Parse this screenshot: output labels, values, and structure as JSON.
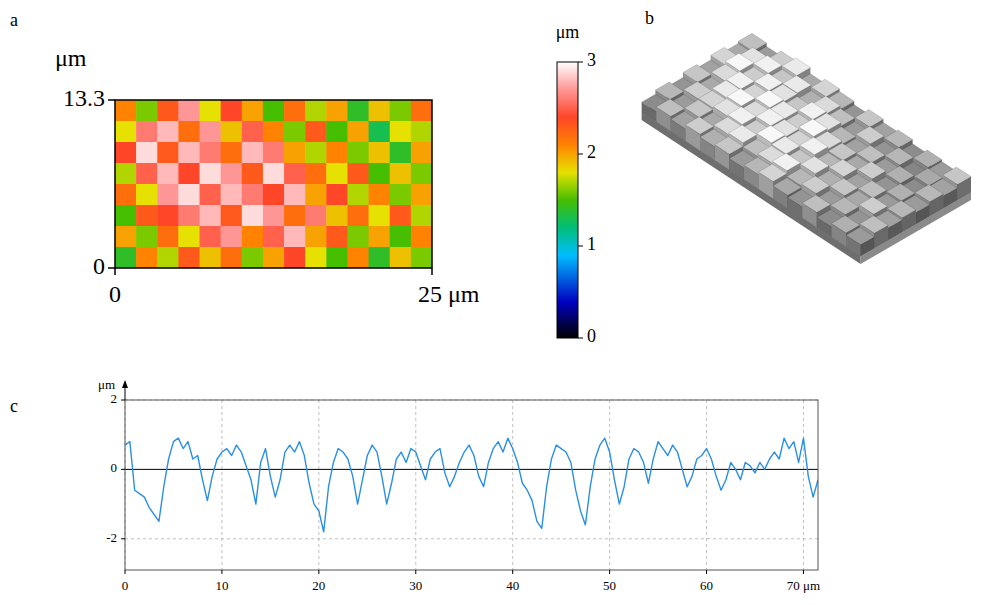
{
  "chart_data": [
    {
      "type": "heatmap",
      "panel_label": "a",
      "y_label": "μm",
      "xlim": [
        0,
        25
      ],
      "ylim": [
        0,
        13.3
      ],
      "xticks": [
        0,
        {
          "value": 25,
          "label": "25 μm"
        }
      ],
      "yticks": [
        0,
        13.3
      ],
      "cells": [
        [
          2.1,
          1.6,
          2.3,
          2.7,
          1.8,
          2.4,
          2.0,
          1.5,
          2.2,
          1.7,
          2.0,
          1.4,
          1.9,
          1.6,
          2.2
        ],
        [
          1.8,
          2.6,
          2.8,
          2.2,
          2.7,
          1.9,
          2.5,
          2.1,
          1.6,
          2.3,
          1.5,
          2.0,
          1.3,
          1.8,
          1.7
        ],
        [
          2.4,
          2.9,
          2.3,
          2.8,
          2.6,
          2.2,
          2.8,
          2.6,
          2.0,
          1.7,
          2.1,
          1.6,
          1.9,
          1.4,
          2.0
        ],
        [
          1.7,
          2.5,
          2.8,
          2.4,
          2.9,
          2.7,
          2.3,
          2.9,
          2.5,
          2.2,
          1.8,
          2.3,
          1.5,
          1.9,
          1.6
        ],
        [
          2.2,
          1.8,
          2.7,
          2.9,
          2.5,
          2.8,
          2.6,
          2.4,
          2.8,
          2.0,
          2.4,
          1.7,
          2.1,
          1.6,
          2.0
        ],
        [
          1.5,
          2.3,
          2.4,
          2.6,
          2.8,
          2.3,
          2.9,
          2.7,
          2.2,
          2.6,
          1.9,
          2.2,
          1.8,
          2.3,
          1.7
        ],
        [
          2.0,
          1.6,
          2.2,
          1.8,
          2.5,
          2.7,
          2.1,
          2.5,
          2.8,
          2.0,
          2.3,
          1.6,
          2.0,
          1.5,
          2.1
        ],
        [
          1.4,
          2.1,
          1.7,
          2.3,
          1.9,
          2.2,
          1.6,
          2.0,
          2.4,
          1.8,
          1.5,
          2.1,
          1.4,
          1.9,
          1.6
        ]
      ],
      "colorbar": {
        "label": "μm",
        "lim": [
          0,
          3
        ],
        "ticks": [
          0,
          1,
          2,
          3
        ]
      }
    },
    {
      "type": "surface",
      "panel_label": "b",
      "tick_labels": false
    },
    {
      "type": "line",
      "panel_label": "c",
      "y_label": "μm",
      "grid": true,
      "xlim": [
        0,
        71.5
      ],
      "ylim": [
        -2.9,
        2
      ],
      "xticks": [
        0,
        10,
        20,
        30,
        40,
        50,
        60,
        {
          "value": 70,
          "label": "70 μm"
        }
      ],
      "yticks": [
        -2,
        0,
        2
      ],
      "x": [
        0,
        0.5,
        1,
        1.5,
        2,
        2.5,
        3,
        3.5,
        4,
        4.5,
        5,
        5.5,
        6,
        6.5,
        7,
        7.5,
        8,
        8.5,
        9,
        9.5,
        10,
        10.5,
        11,
        11.5,
        12,
        12.5,
        13,
        13.5,
        14,
        14.5,
        15,
        15.5,
        16,
        16.5,
        17,
        17.5,
        18,
        18.5,
        19,
        19.5,
        20,
        20.5,
        21,
        21.5,
        22,
        22.5,
        23,
        23.5,
        24,
        24.5,
        25,
        25.5,
        26,
        26.5,
        27,
        27.5,
        28,
        28.5,
        29,
        29.5,
        30,
        30.5,
        31,
        31.5,
        32,
        32.5,
        33,
        33.5,
        34,
        34.5,
        35,
        35.5,
        36,
        36.5,
        37,
        37.5,
        38,
        38.5,
        39,
        39.5,
        40,
        40.5,
        41,
        41.5,
        42,
        42.5,
        43,
        43.5,
        44,
        44.5,
        45,
        45.5,
        46,
        46.5,
        47,
        47.5,
        48,
        48.5,
        49,
        49.5,
        50,
        50.5,
        51,
        51.5,
        52,
        52.5,
        53,
        53.5,
        54,
        54.5,
        55,
        55.5,
        56,
        56.5,
        57,
        57.5,
        58,
        58.5,
        59,
        59.5,
        60,
        60.5,
        61,
        61.5,
        62,
        62.5,
        63,
        63.5,
        64,
        64.5,
        65,
        65.5,
        66,
        66.5,
        67,
        67.5,
        68,
        68.5,
        69,
        69.5,
        70,
        70.5,
        71,
        71.5
      ],
      "series": [
        {
          "color": "#2b8fe3",
          "values": [
            0.7,
            0.8,
            -0.6,
            -0.7,
            -0.8,
            -1.1,
            -1.3,
            -1.5,
            -0.5,
            0.3,
            0.8,
            0.9,
            0.6,
            0.8,
            0.3,
            0.4,
            -0.3,
            -0.9,
            -0.2,
            0.3,
            0.5,
            0.6,
            0.4,
            0.7,
            0.5,
            0.1,
            -0.3,
            -1.0,
            0.2,
            0.6,
            -0.2,
            -0.8,
            -0.3,
            0.5,
            0.7,
            0.5,
            0.8,
            0.4,
            -0.4,
            -1.0,
            -1.2,
            -1.8,
            -0.5,
            0.2,
            0.6,
            0.5,
            0.3,
            -0.2,
            -1.0,
            -0.3,
            0.4,
            0.7,
            0.5,
            -0.2,
            -1.0,
            -0.4,
            0.3,
            0.5,
            0.2,
            0.6,
            0.5,
            0.1,
            -0.3,
            0.3,
            0.5,
            0.6,
            -0.1,
            -0.5,
            -0.2,
            0.2,
            0.5,
            0.7,
            0.4,
            -0.2,
            -0.5,
            0.2,
            0.6,
            0.8,
            0.5,
            0.9,
            0.6,
            0.2,
            -0.4,
            -0.6,
            -0.9,
            -1.5,
            -1.7,
            -0.5,
            0.3,
            0.7,
            0.6,
            0.5,
            0.2,
            -0.6,
            -1.2,
            -1.6,
            -0.5,
            0.3,
            0.7,
            0.9,
            0.5,
            -0.3,
            -1.0,
            -0.5,
            0.3,
            0.6,
            0.5,
            0.2,
            -0.4,
            0.3,
            0.8,
            0.6,
            0.4,
            0.7,
            0.5,
            0.0,
            -0.5,
            -0.2,
            0.3,
            0.4,
            0.6,
            0.3,
            -0.2,
            -0.6,
            -0.3,
            0.2,
            0.0,
            -0.3,
            0.2,
            0.1,
            -0.1,
            0.2,
            0.0,
            0.3,
            0.5,
            0.3,
            0.9,
            0.6,
            0.8,
            0.2,
            0.9,
            -0.2,
            -0.8,
            -0.3
          ]
        }
      ]
    }
  ]
}
